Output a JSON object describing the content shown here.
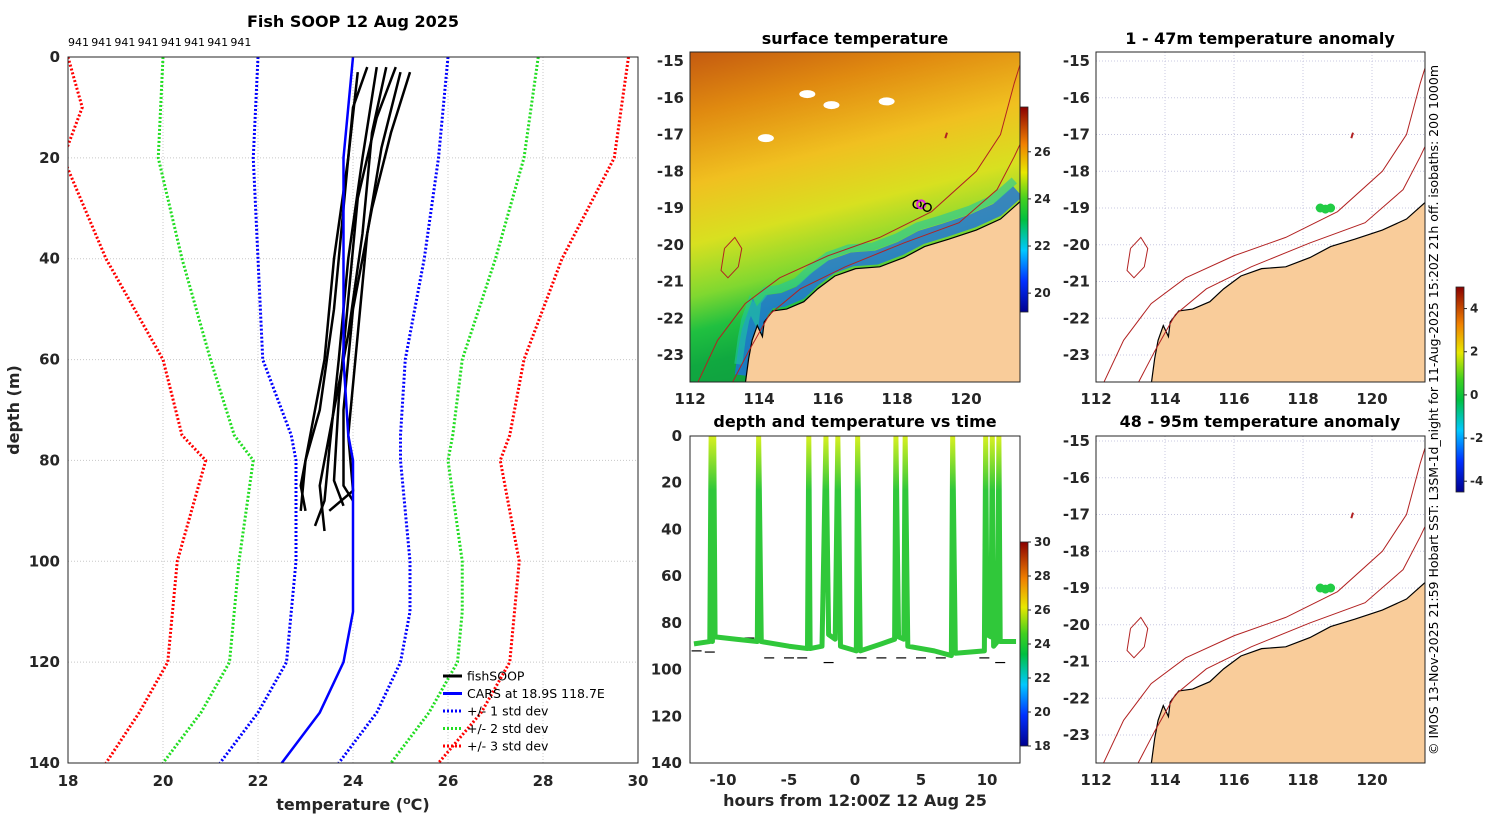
{
  "side_caption": "© IMOS 13-Nov-2025 21:59 Hobart SST: L3SM-1d_night for 11-Aug-2025 15:20Z 21h off. isobaths: 200  1000m",
  "colors": {
    "fishsoop": "#000000",
    "cars": "#0000ff",
    "std1": "#0000ff",
    "std2": "#22dd22",
    "std3": "#ff0000",
    "land": "#f9cc9a",
    "isobath": "#b22222",
    "track": "#2fc83a"
  },
  "chart_data": [
    {
      "type": "line",
      "title": "Fish SOOP 12 Aug 2025",
      "top_labels": [
        "941",
        "941",
        "941",
        "941",
        "941",
        "941",
        "941",
        "941"
      ],
      "xlabel": "temperature (",
      "xlabel_sup": "o",
      "xlabel_end": "C)",
      "ylabel": "depth (m)",
      "xlim": [
        18,
        30
      ],
      "ylim": [
        0,
        140
      ],
      "xticks": [
        "18",
        "20",
        "22",
        "24",
        "26",
        "28",
        "30"
      ],
      "yticks": [
        "0",
        "20",
        "40",
        "60",
        "80",
        "100",
        "120",
        "140"
      ],
      "grid": true,
      "legend_position": "bottom-right",
      "legend": [
        "fishSOOP",
        "CARS at 18.9S 118.7E",
        "+/- 1 std dev",
        "+/- 2 std dev",
        "+/- 3 std dev"
      ],
      "fishsoop_profiles": [
        [
          [
            24.3,
            2
          ],
          [
            24.0,
            10
          ],
          [
            23.8,
            30
          ],
          [
            23.6,
            50
          ],
          [
            23.3,
            70
          ],
          [
            23.0,
            80
          ],
          [
            22.9,
            90
          ]
        ],
        [
          [
            24.7,
            2
          ],
          [
            24.4,
            15
          ],
          [
            24.2,
            35
          ],
          [
            23.9,
            55
          ],
          [
            23.5,
            75
          ],
          [
            23.3,
            85
          ],
          [
            23.4,
            94
          ]
        ],
        [
          [
            25.2,
            3
          ],
          [
            24.8,
            15
          ],
          [
            24.4,
            30
          ],
          [
            24.0,
            50
          ],
          [
            23.8,
            70
          ],
          [
            23.8,
            85
          ],
          [
            24.0,
            88
          ]
        ],
        [
          [
            24.1,
            3
          ],
          [
            23.9,
            20
          ],
          [
            23.6,
            40
          ],
          [
            23.4,
            60
          ],
          [
            23.1,
            75
          ],
          [
            22.9,
            85
          ],
          [
            23.0,
            90
          ]
        ],
        [
          [
            25.0,
            3
          ],
          [
            24.6,
            18
          ],
          [
            24.3,
            35
          ],
          [
            24.1,
            55
          ],
          [
            23.9,
            75
          ],
          [
            24.0,
            86
          ],
          [
            23.5,
            90
          ]
        ],
        [
          [
            24.5,
            2
          ],
          [
            24.2,
            20
          ],
          [
            23.9,
            40
          ],
          [
            23.7,
            60
          ],
          [
            23.5,
            78
          ],
          [
            23.4,
            88
          ],
          [
            23.2,
            93
          ]
        ],
        [
          [
            24.9,
            2
          ],
          [
            24.5,
            12
          ],
          [
            24.1,
            28
          ],
          [
            23.9,
            48
          ],
          [
            23.7,
            68
          ],
          [
            23.6,
            84
          ],
          [
            23.8,
            89
          ]
        ]
      ],
      "depths": [
        0,
        10,
        20,
        40,
        60,
        75,
        80,
        100,
        110,
        120,
        130,
        140
      ],
      "cars_mean": [
        24.0,
        23.9,
        23.8,
        23.8,
        23.8,
        23.9,
        24.0,
        24.0,
        24.0,
        23.8,
        23.3,
        22.5
      ],
      "std1_low": [
        22.0,
        21.95,
        21.9,
        22.0,
        22.1,
        22.7,
        22.8,
        22.8,
        22.7,
        22.6,
        22.0,
        21.2
      ],
      "std1_high": [
        26.0,
        25.9,
        25.8,
        25.5,
        25.1,
        25.0,
        25.0,
        25.2,
        25.2,
        25.0,
        24.5,
        23.7
      ],
      "std2_low": [
        20.0,
        19.95,
        19.9,
        20.4,
        21.0,
        21.5,
        21.9,
        21.6,
        21.5,
        21.4,
        20.8,
        20.0
      ],
      "std2_high": [
        27.9,
        27.75,
        27.6,
        27.0,
        26.3,
        26.1,
        26.0,
        26.3,
        26.3,
        26.2,
        25.6,
        24.8
      ],
      "std3_low": [
        18.0,
        18.3,
        17.9,
        18.8,
        20.0,
        20.4,
        20.9,
        20.3,
        20.2,
        20.1,
        19.5,
        18.8
      ],
      "std3_high": [
        29.8,
        29.65,
        29.5,
        28.4,
        27.6,
        27.3,
        27.1,
        27.5,
        27.4,
        27.3,
        26.7,
        25.8
      ]
    },
    {
      "type": "heatmap",
      "title": "surface temperature",
      "xlim": [
        112,
        121.5
      ],
      "ylim": [
        -23.7,
        -14.75
      ],
      "xticks": [
        "112",
        "114",
        "116",
        "118",
        "120"
      ],
      "yticks": [
        "-15",
        "-16",
        "-17",
        "-18",
        "-19",
        "-20",
        "-21",
        "-22",
        "-23"
      ],
      "colorbar_ticks": [
        "20",
        "22",
        "24",
        "26"
      ],
      "colorbar_range": [
        19.2,
        27.9
      ],
      "position_marker": {
        "lon": 118.7,
        "lat": -18.9
      }
    },
    {
      "type": "scatter",
      "title": "depth and temperature vs time",
      "xlabel": "hours from 12:00Z 12 Aug 25",
      "xlim": [
        -12.5,
        12.5
      ],
      "ylim": [
        0,
        140
      ],
      "xticks": [
        "-10",
        "-5",
        "0",
        "5",
        "10"
      ],
      "yticks": [
        "0",
        "20",
        "40",
        "60",
        "80",
        "100",
        "120",
        "140"
      ],
      "colorbar_ticks": [
        "18",
        "20",
        "22",
        "24",
        "26",
        "28",
        "30"
      ],
      "colorbar_range": [
        18,
        30
      ],
      "track": [
        [
          -12.2,
          89
        ],
        [
          -11.0,
          88
        ],
        [
          -10.9,
          0
        ],
        [
          -10.8,
          88
        ],
        [
          -10.7,
          0
        ],
        [
          -10.6,
          86
        ],
        [
          -9,
          87
        ],
        [
          -7.4,
          88
        ],
        [
          -7.3,
          0
        ],
        [
          -7.1,
          88
        ],
        [
          -5,
          90
        ],
        [
          -3.6,
          91
        ],
        [
          -3.5,
          0
        ],
        [
          -3.4,
          91
        ],
        [
          -2.5,
          90
        ],
        [
          -2.2,
          0
        ],
        [
          -2.0,
          85
        ],
        [
          -1.5,
          87
        ],
        [
          -1.3,
          0
        ],
        [
          -1.1,
          90
        ],
        [
          0.1,
          92
        ],
        [
          0.2,
          0
        ],
        [
          0.4,
          92
        ],
        [
          2,
          89
        ],
        [
          3.0,
          87
        ],
        [
          3.1,
          0
        ],
        [
          3.3,
          86
        ],
        [
          3.7,
          87
        ],
        [
          3.8,
          0
        ],
        [
          4.0,
          90
        ],
        [
          6,
          92
        ],
        [
          7.3,
          94
        ],
        [
          7.4,
          0
        ],
        [
          7.6,
          93
        ],
        [
          9.8,
          92
        ],
        [
          9.9,
          0
        ],
        [
          10.0,
          85
        ],
        [
          10.3,
          86
        ],
        [
          10.4,
          0
        ],
        [
          10.5,
          90
        ],
        [
          10.8,
          88
        ],
        [
          10.9,
          0
        ],
        [
          11.0,
          88
        ],
        [
          12.2,
          88
        ]
      ],
      "bottom_depth": [
        [
          -12,
          92
        ],
        [
          -11,
          92.5
        ],
        [
          -9,
          86.5
        ],
        [
          -8,
          86.5
        ],
        [
          -6.5,
          95
        ],
        [
          -5,
          95
        ],
        [
          -4,
          95
        ],
        [
          -2,
          97
        ],
        [
          0.5,
          95
        ],
        [
          2,
          95
        ],
        [
          3.5,
          95
        ],
        [
          5,
          95
        ],
        [
          6.5,
          95
        ],
        [
          9.8,
          95
        ],
        [
          11,
          97
        ]
      ]
    },
    {
      "type": "heatmap",
      "title": "1 - 47m temperature anomaly",
      "xticks": [
        "112",
        "114",
        "116",
        "118",
        "120"
      ],
      "yticks": [
        "-15",
        "-16",
        "-17",
        "-18",
        "-19",
        "-20",
        "-21",
        "-22",
        "-23"
      ],
      "anomaly_points": [
        [
          118.5,
          -19.0
        ],
        [
          118.65,
          -19.03
        ],
        [
          118.8,
          -19.0
        ]
      ]
    },
    {
      "type": "heatmap",
      "title": "48 - 95m temperature anomaly",
      "xticks": [
        "112",
        "114",
        "116",
        "118",
        "120"
      ],
      "yticks": [
        "-15",
        "-16",
        "-17",
        "-18",
        "-19",
        "-20",
        "-21",
        "-22",
        "-23"
      ],
      "anomaly_points": [
        [
          118.5,
          -19.0
        ],
        [
          118.65,
          -19.03
        ],
        [
          118.8,
          -19.0
        ]
      ],
      "colorbar_ticks": [
        "4",
        "2",
        "0",
        "-2",
        "-4"
      ],
      "colorbar_range": [
        -4.5,
        5
      ]
    }
  ]
}
